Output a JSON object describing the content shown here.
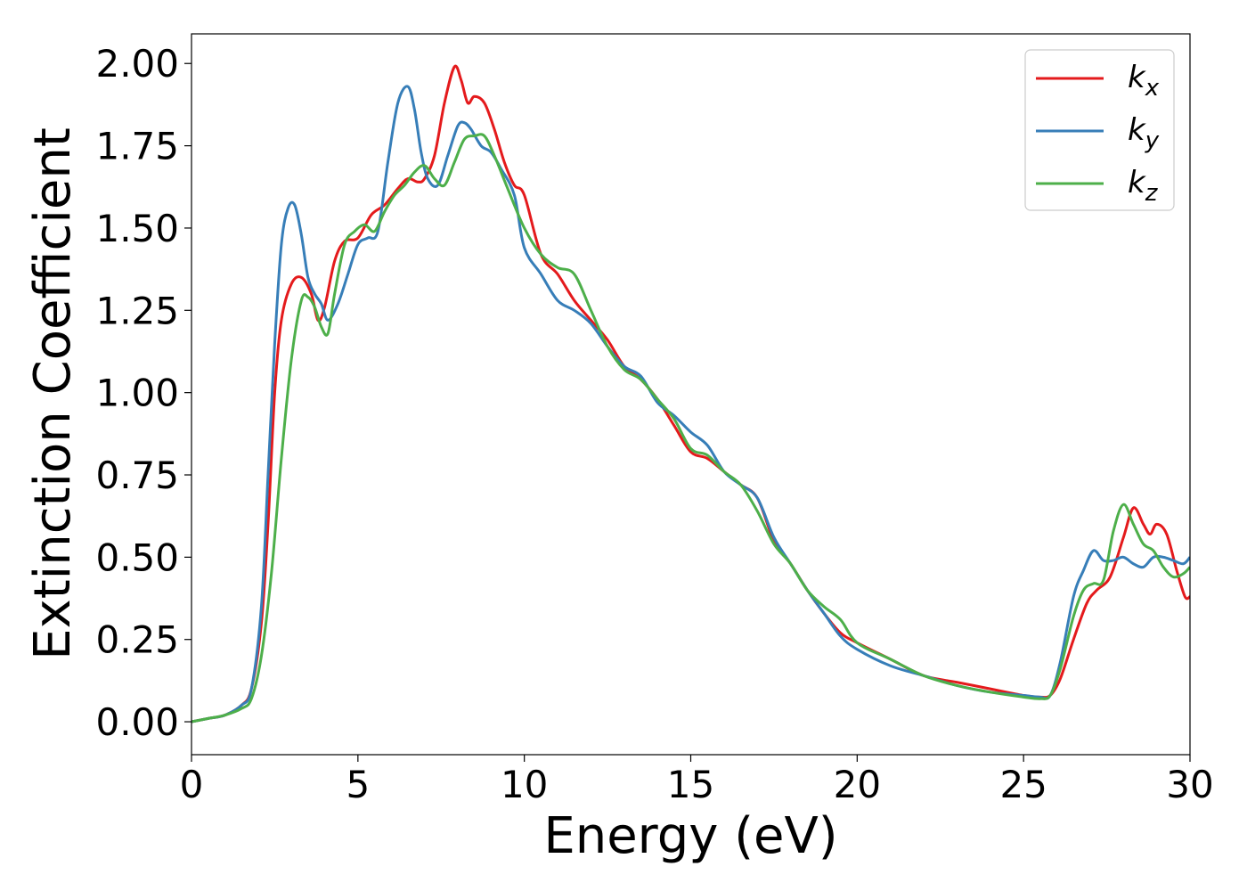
{
  "chart_data": {
    "type": "line",
    "title": "",
    "xlabel": "Energy (eV)",
    "ylabel": "Extinction Coefficient",
    "xlim": [
      0,
      30
    ],
    "ylim": [
      -0.1,
      2.09
    ],
    "xticks": [
      0,
      5,
      10,
      15,
      20,
      25,
      30
    ],
    "xtick_labels": [
      "0",
      "5",
      "10",
      "15",
      "20",
      "25",
      "30"
    ],
    "yticks": [
      0,
      0.25,
      0.5,
      0.75,
      1.0,
      1.25,
      1.5,
      1.75,
      2.0
    ],
    "ytick_labels": [
      "0.00",
      "0.25",
      "0.50",
      "0.75",
      "1.00",
      "1.25",
      "1.50",
      "1.75",
      "2.00"
    ],
    "grid": false,
    "legend_position": "top-right",
    "series": [
      {
        "name": "k",
        "subscript": "x",
        "color": "#e41a1c",
        "x": [
          0,
          0.5,
          1,
          1.5,
          1.8,
          2.1,
          2.3,
          2.5,
          2.7,
          3.0,
          3.3,
          3.6,
          3.8,
          4.0,
          4.3,
          4.6,
          5.0,
          5.4,
          5.8,
          6.2,
          6.5,
          6.8,
          7.0,
          7.3,
          7.6,
          7.9,
          8.1,
          8.3,
          8.5,
          8.8,
          9.1,
          9.4,
          9.7,
          10.0,
          10.5,
          11.0,
          11.5,
          12.0,
          12.5,
          13.0,
          13.5,
          14.0,
          14.5,
          15.0,
          15.5,
          16.0,
          16.5,
          17.0,
          17.5,
          18.0,
          18.5,
          19.0,
          19.5,
          20.0,
          21.0,
          22.0,
          23.0,
          24.0,
          25.0,
          25.5,
          25.8,
          26.1,
          26.5,
          26.9,
          27.2,
          27.6,
          28.0,
          28.3,
          28.6,
          28.8,
          29.0,
          29.3,
          29.6,
          29.85,
          30.0
        ],
        "y": [
          0.0,
          0.01,
          0.02,
          0.05,
          0.1,
          0.3,
          0.6,
          1.0,
          1.22,
          1.33,
          1.35,
          1.3,
          1.22,
          1.26,
          1.4,
          1.46,
          1.47,
          1.54,
          1.57,
          1.62,
          1.65,
          1.64,
          1.65,
          1.72,
          1.88,
          1.99,
          1.95,
          1.88,
          1.9,
          1.88,
          1.8,
          1.7,
          1.63,
          1.6,
          1.42,
          1.36,
          1.28,
          1.22,
          1.16,
          1.08,
          1.04,
          0.98,
          0.9,
          0.82,
          0.8,
          0.76,
          0.72,
          0.68,
          0.55,
          0.48,
          0.4,
          0.33,
          0.27,
          0.24,
          0.19,
          0.14,
          0.12,
          0.1,
          0.08,
          0.075,
          0.08,
          0.13,
          0.25,
          0.36,
          0.4,
          0.44,
          0.56,
          0.65,
          0.6,
          0.57,
          0.6,
          0.57,
          0.46,
          0.38,
          0.38
        ]
      },
      {
        "name": "k",
        "subscript": "y",
        "color": "#377eb8",
        "x": [
          0,
          0.5,
          1,
          1.5,
          1.8,
          2.1,
          2.3,
          2.5,
          2.7,
          2.9,
          3.1,
          3.3,
          3.5,
          3.7,
          3.9,
          4.1,
          4.4,
          4.7,
          5.0,
          5.3,
          5.6,
          5.9,
          6.2,
          6.5,
          6.7,
          6.9,
          7.1,
          7.4,
          7.7,
          8.0,
          8.2,
          8.4,
          8.7,
          9.0,
          9.3,
          9.7,
          10.0,
          10.5,
          11.0,
          11.5,
          12.0,
          12.5,
          13.0,
          13.5,
          14.0,
          14.5,
          15.0,
          15.5,
          16.0,
          16.5,
          17.0,
          17.5,
          18.0,
          18.5,
          19.0,
          19.5,
          20.0,
          21.0,
          22.0,
          23.0,
          24.0,
          25.0,
          25.5,
          25.8,
          26.1,
          26.5,
          26.8,
          27.1,
          27.4,
          27.7,
          28.0,
          28.3,
          28.6,
          28.9,
          29.2,
          29.5,
          29.8,
          30.0
        ],
        "y": [
          0.0,
          0.01,
          0.02,
          0.05,
          0.1,
          0.35,
          0.75,
          1.15,
          1.45,
          1.56,
          1.57,
          1.48,
          1.35,
          1.3,
          1.27,
          1.22,
          1.27,
          1.36,
          1.45,
          1.47,
          1.49,
          1.7,
          1.88,
          1.93,
          1.86,
          1.73,
          1.65,
          1.63,
          1.72,
          1.81,
          1.82,
          1.8,
          1.75,
          1.73,
          1.68,
          1.6,
          1.44,
          1.36,
          1.28,
          1.25,
          1.21,
          1.14,
          1.08,
          1.05,
          0.97,
          0.93,
          0.88,
          0.84,
          0.76,
          0.72,
          0.68,
          0.56,
          0.48,
          0.4,
          0.33,
          0.26,
          0.22,
          0.17,
          0.14,
          0.11,
          0.09,
          0.08,
          0.075,
          0.08,
          0.18,
          0.38,
          0.46,
          0.52,
          0.49,
          0.49,
          0.5,
          0.48,
          0.47,
          0.5,
          0.5,
          0.49,
          0.48,
          0.5
        ]
      },
      {
        "name": "k",
        "subscript": "z",
        "color": "#4daf4a",
        "x": [
          0,
          0.5,
          1,
          1.5,
          1.8,
          2.1,
          2.4,
          2.7,
          3.0,
          3.3,
          3.5,
          3.7,
          3.9,
          4.1,
          4.3,
          4.6,
          4.9,
          5.2,
          5.5,
          5.8,
          6.1,
          6.4,
          6.7,
          7.0,
          7.3,
          7.6,
          7.9,
          8.2,
          8.5,
          8.8,
          9.1,
          9.5,
          10.0,
          10.5,
          11.0,
          11.5,
          12.0,
          12.5,
          13.0,
          13.5,
          14.0,
          14.5,
          15.0,
          15.5,
          16.0,
          16.5,
          17.0,
          17.5,
          18.0,
          18.5,
          19.0,
          19.5,
          20.0,
          21.0,
          22.0,
          23.0,
          24.0,
          25.0,
          25.5,
          25.8,
          26.1,
          26.5,
          26.8,
          27.1,
          27.4,
          27.7,
          28.0,
          28.3,
          28.6,
          28.9,
          29.2,
          29.5,
          29.8,
          30.0
        ],
        "y": [
          0.0,
          0.01,
          0.02,
          0.04,
          0.07,
          0.2,
          0.45,
          0.8,
          1.1,
          1.28,
          1.29,
          1.26,
          1.2,
          1.18,
          1.3,
          1.45,
          1.49,
          1.51,
          1.49,
          1.55,
          1.6,
          1.63,
          1.67,
          1.69,
          1.65,
          1.63,
          1.7,
          1.77,
          1.78,
          1.78,
          1.72,
          1.62,
          1.5,
          1.42,
          1.38,
          1.36,
          1.25,
          1.14,
          1.07,
          1.04,
          0.98,
          0.92,
          0.83,
          0.81,
          0.76,
          0.72,
          0.64,
          0.54,
          0.48,
          0.4,
          0.35,
          0.31,
          0.24,
          0.19,
          0.14,
          0.11,
          0.09,
          0.075,
          0.07,
          0.08,
          0.16,
          0.32,
          0.4,
          0.42,
          0.43,
          0.58,
          0.66,
          0.6,
          0.54,
          0.52,
          0.47,
          0.44,
          0.45,
          0.47
        ]
      }
    ]
  }
}
